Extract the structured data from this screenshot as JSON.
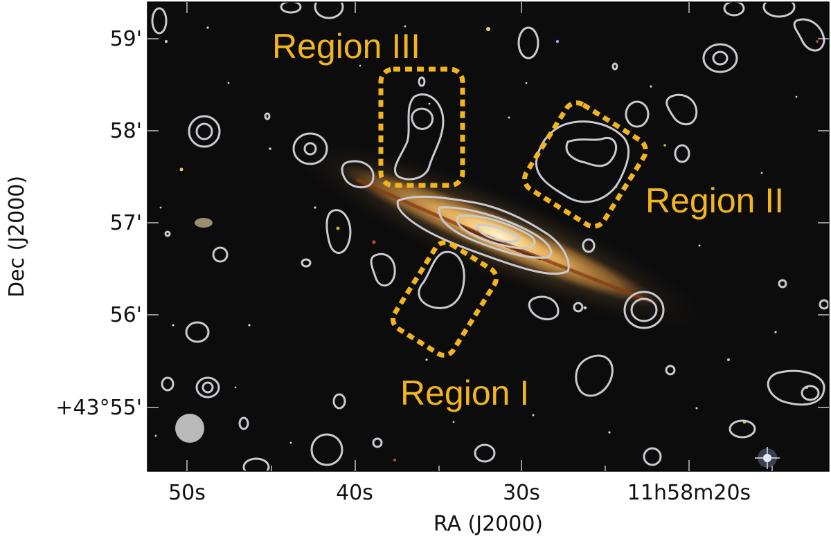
{
  "figure": {
    "x_axis": {
      "title": "RA (J2000)",
      "ticks": [
        "50s",
        "40s",
        "30s",
        "11h58m20s"
      ]
    },
    "y_axis": {
      "title": "Dec (J2000)",
      "ticks": [
        "59'",
        "58'",
        "57'",
        "56'",
        "+43°55'"
      ]
    },
    "regions": [
      {
        "label": "Region III"
      },
      {
        "label": "Region II"
      },
      {
        "label": "Region I"
      }
    ],
    "colors": {
      "region": "#f2b51d",
      "contour": "#c9cbd0",
      "sky": "#0c0c0d",
      "galaxy_core": "#f7d89a",
      "dust_lane": "#8a3a12",
      "beam": "#b9b9b9"
    }
  }
}
